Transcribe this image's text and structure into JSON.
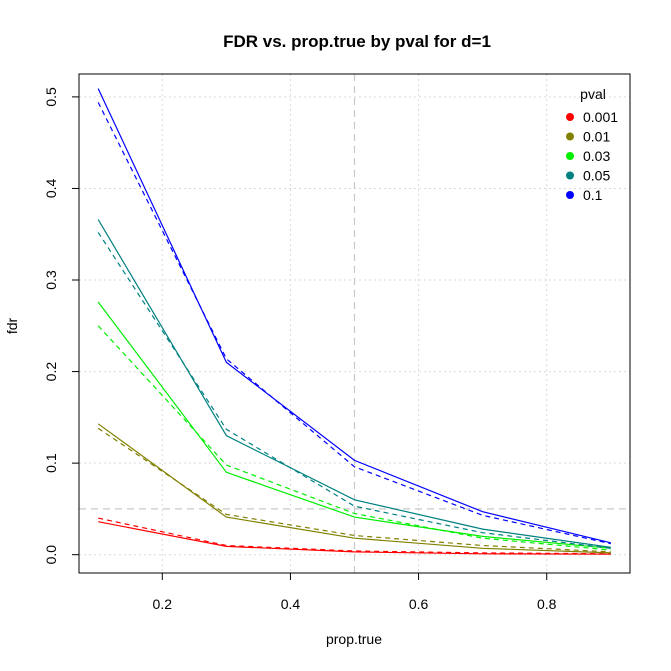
{
  "chart_data": {
    "type": "line",
    "title": "FDR vs. prop.true by pval for d=1",
    "xlabel": "prop.true",
    "ylabel": "fdr",
    "x": [
      0.1,
      0.3,
      0.5,
      0.7,
      0.9
    ],
    "xlim": [
      0.07,
      0.93
    ],
    "ylim": [
      -0.02,
      0.525
    ],
    "xticks": [
      0.2,
      0.4,
      0.6,
      0.8
    ],
    "yticks": [
      0.0,
      0.1,
      0.2,
      0.3,
      0.4,
      0.5
    ],
    "xtick_labels": [
      "0.2",
      "0.4",
      "0.6",
      "0.8"
    ],
    "ytick_labels": [
      "0.0",
      "0.1",
      "0.2",
      "0.3",
      "0.4",
      "0.5"
    ],
    "grid": true,
    "reference_lines": {
      "vertical_x": 0.5,
      "horizontal_y": 0.05
    },
    "legend": {
      "title": "pval",
      "position": "top-right"
    },
    "series": [
      {
        "name": "0.001",
        "color": "#ff0000",
        "solid": [
          0.036,
          0.009,
          0.003,
          0.001,
          0.0005
        ],
        "dashed": [
          0.04,
          0.01,
          0.004,
          0.002,
          0.001
        ]
      },
      {
        "name": "0.01",
        "color": "#808000",
        "solid": [
          0.143,
          0.041,
          0.018,
          0.007,
          0.002
        ],
        "dashed": [
          0.138,
          0.044,
          0.021,
          0.01,
          0.003
        ]
      },
      {
        "name": "0.03",
        "color": "#00ee00",
        "solid": [
          0.276,
          0.09,
          0.041,
          0.02,
          0.007
        ],
        "dashed": [
          0.25,
          0.098,
          0.045,
          0.018,
          0.005
        ]
      },
      {
        "name": "0.05",
        "color": "#008080",
        "solid": [
          0.366,
          0.13,
          0.06,
          0.028,
          0.008
        ],
        "dashed": [
          0.352,
          0.137,
          0.053,
          0.024,
          0.007
        ]
      },
      {
        "name": "0.1",
        "color": "#0000ff",
        "solid": [
          0.509,
          0.21,
          0.103,
          0.047,
          0.013
        ],
        "dashed": [
          0.494,
          0.214,
          0.096,
          0.043,
          0.012
        ]
      }
    ]
  }
}
